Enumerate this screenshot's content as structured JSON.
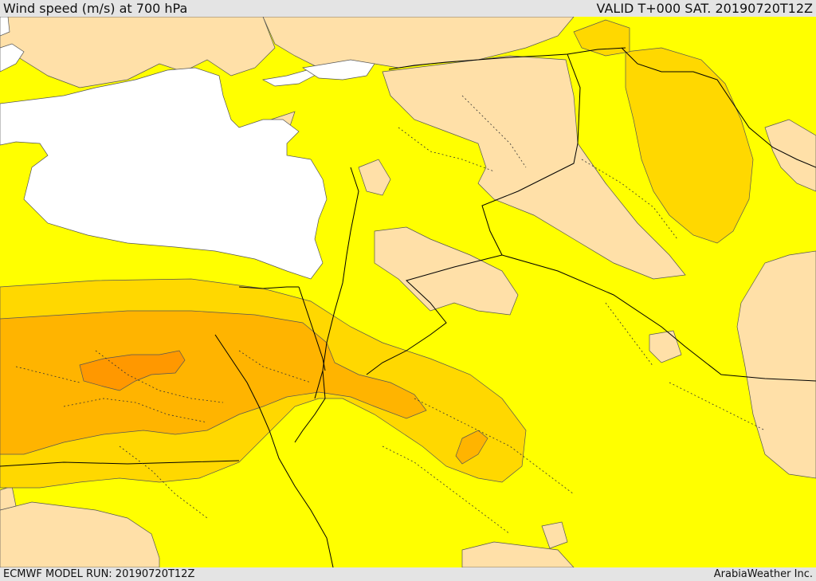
{
  "header": {
    "title": "Wind speed (m/s) at 700 hPa",
    "valid": "VALID T+000 SAT. 20190720T12Z"
  },
  "footer": {
    "model_run": "ECMWF MODEL RUN: 20190720T12Z",
    "credit": "ArabiaWeather Inc."
  },
  "map": {
    "variable": "wind speed",
    "units": "m/s",
    "level": "700 hPa",
    "region": "Eastern Mediterranean / Levant / Arabian Peninsula",
    "colors": {
      "sea_masked": "#ffffff",
      "band_low": "#ffe0a8",
      "band_mid": "#ffff00",
      "band_high": "#ffd800",
      "band_higher": "#ffb400",
      "band_max": "#ff9800",
      "borders": "#000000"
    }
  }
}
